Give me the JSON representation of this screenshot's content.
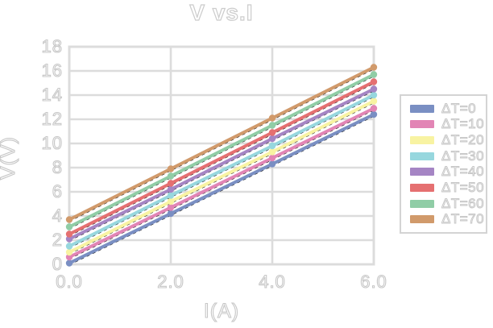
{
  "chart_data": {
    "type": "line",
    "title": "V vs.I",
    "xlabel": "I(A)",
    "ylabel": "V(V)",
    "x": [
      0,
      2,
      4,
      6
    ],
    "xlim": [
      0,
      6
    ],
    "ylim": [
      0,
      18
    ],
    "grid": true,
    "legend_position": "right",
    "x_ticks": [
      "0.0",
      "2.0",
      "4.0",
      "6.0"
    ],
    "y_ticks": [
      "0",
      "2",
      "4",
      "6",
      "8",
      "10",
      "12",
      "14",
      "16",
      "18"
    ],
    "series": [
      {
        "name": "ΔT=0",
        "color": "#7a8fc3",
        "values": [
          0.1,
          4.2,
          8.3,
          12.4
        ]
      },
      {
        "name": "ΔT=10",
        "color": "#e285b5",
        "values": [
          0.6,
          4.7,
          8.8,
          12.9
        ]
      },
      {
        "name": "ΔT=20",
        "color": "#f8f3a2",
        "values": [
          1.0,
          5.2,
          9.3,
          13.5
        ]
      },
      {
        "name": "ΔT=30",
        "color": "#97d7de",
        "values": [
          1.5,
          5.7,
          9.8,
          14.0
        ]
      },
      {
        "name": "ΔT=40",
        "color": "#a585c4",
        "values": [
          2.1,
          6.2,
          10.4,
          14.5
        ]
      },
      {
        "name": "ΔT=50",
        "color": "#e57071",
        "values": [
          2.5,
          6.7,
          10.9,
          15.1
        ]
      },
      {
        "name": "ΔT=60",
        "color": "#90cda6",
        "values": [
          3.1,
          7.3,
          11.5,
          15.7
        ]
      },
      {
        "name": "ΔT=70",
        "color": "#d19a6b",
        "values": [
          3.7,
          7.9,
          12.1,
          16.3
        ]
      }
    ],
    "trendline_style": "black dashed under each series",
    "marker": "round dot at data points",
    "text_style": "hollow outlined gray text",
    "gridline_color": "#dcdcdc"
  }
}
